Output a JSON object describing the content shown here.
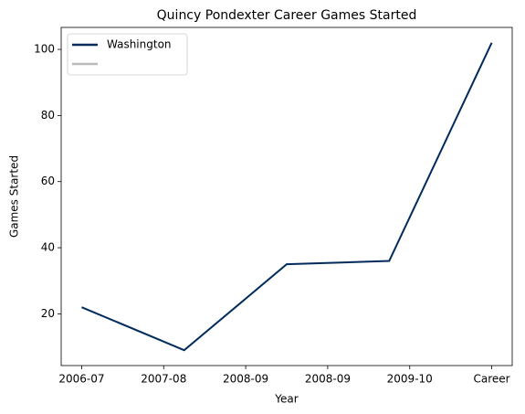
{
  "chart_data": {
    "type": "line",
    "title": "Quincy Pondexter Career Games Started",
    "xlabel": "Year",
    "ylabel": "Games Started",
    "x": [
      0,
      1,
      2,
      3,
      4
    ],
    "series": [
      {
        "name": "Washington",
        "color": "#002b5c",
        "values": [
          22,
          9,
          35,
          36,
          102
        ]
      },
      {
        "color": "#bbbbbb",
        "values": [
          null,
          null,
          null,
          null,
          null
        ]
      }
    ],
    "xlim": [
      -0.2,
      4.2
    ],
    "xticks": [
      {
        "value": 0,
        "label": "2006-07"
      },
      {
        "value": 0.8,
        "label": "2007-08"
      },
      {
        "value": 1.6,
        "label": "2008-09"
      },
      {
        "value": 2.4,
        "label": "2008-09"
      },
      {
        "value": 3.2,
        "label": "2009-10"
      },
      {
        "value": 4,
        "label": "Career"
      }
    ],
    "ylim": [
      4.35,
      106.65
    ],
    "yticks": [
      20,
      40,
      60,
      80,
      100
    ],
    "legend": "upper left"
  }
}
